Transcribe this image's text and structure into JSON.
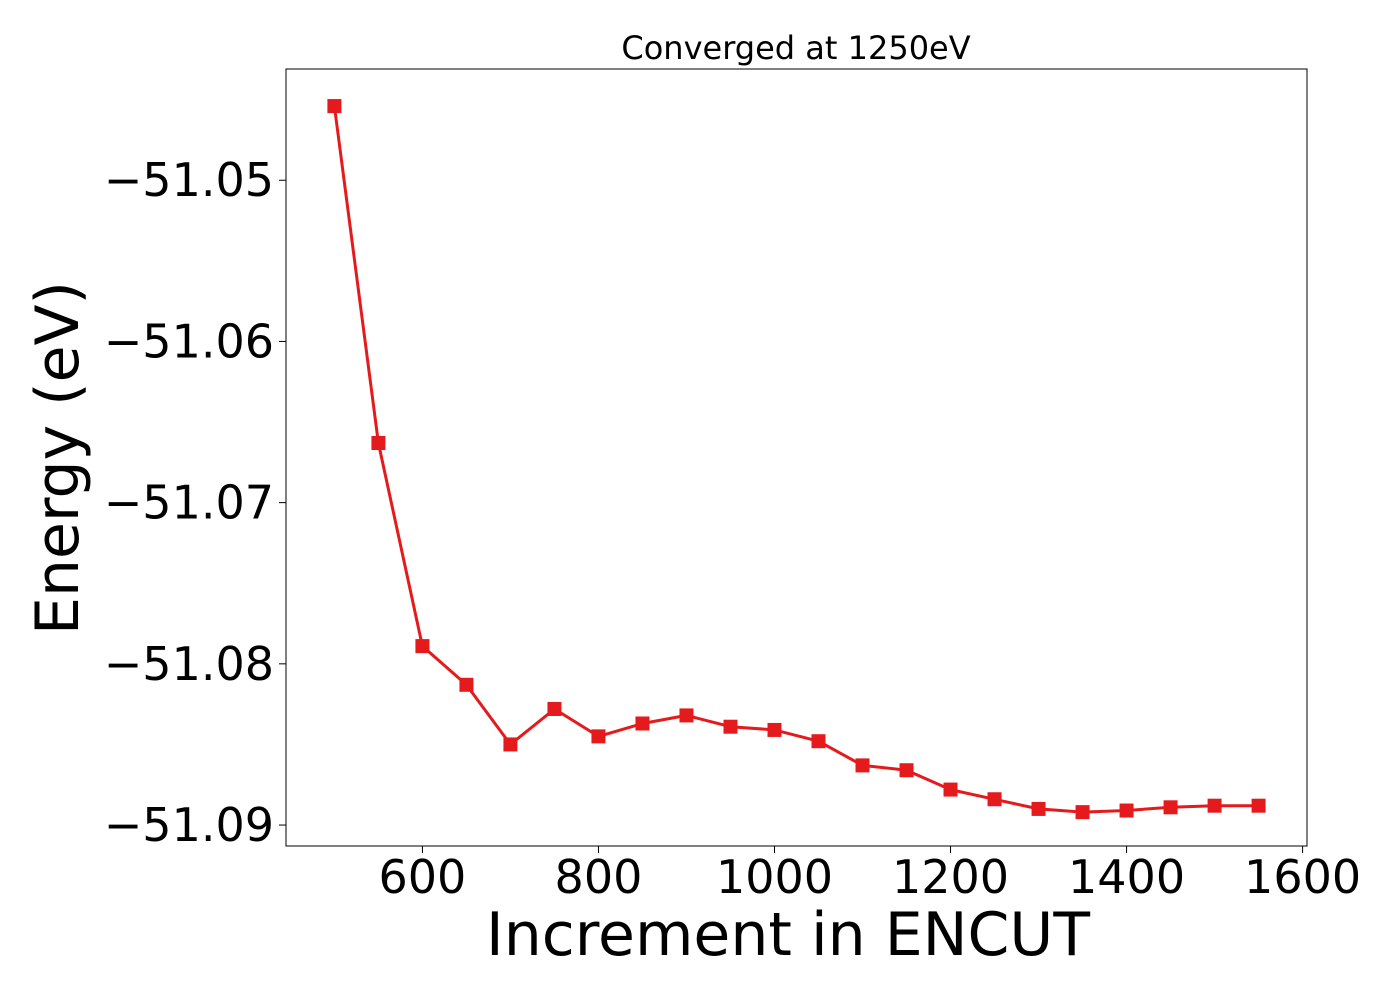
{
  "chart_data": {
    "type": "line",
    "title": "Converged at 1250eV",
    "xlabel": "Increment in ENCUT",
    "ylabel": "Energy (eV)",
    "xlim": [
      445,
      1605
    ],
    "ylim": [
      -51.0913,
      -51.0431
    ],
    "xticks": [
      600,
      800,
      1000,
      1200,
      1400,
      1600
    ],
    "xtick_labels": [
      "600",
      "800",
      "1000",
      "1200",
      "1400",
      "1600"
    ],
    "yticks": [
      -51.05,
      -51.06,
      -51.07,
      -51.08,
      -51.09
    ],
    "ytick_labels": [
      "−51.05",
      "−51.06",
      "−51.07",
      "−51.08",
      "−51.09"
    ],
    "grid": false,
    "series": [
      {
        "color": "#e41a1c",
        "marker": "square",
        "x": [
          500,
          550,
          600,
          650,
          700,
          750,
          800,
          850,
          900,
          950,
          1000,
          1050,
          1100,
          1150,
          1200,
          1250,
          1300,
          1350,
          1400,
          1450,
          1500,
          1550
        ],
        "y": [
          -51.0454,
          -51.0663,
          -51.0789,
          -51.0813,
          -51.085,
          -51.0828,
          -51.0845,
          -51.0837,
          -51.0832,
          -51.0839,
          -51.0841,
          -51.0848,
          -51.0863,
          -51.0866,
          -51.0878,
          -51.0884,
          -51.089,
          -51.0892,
          -51.0891,
          -51.0889,
          -51.0888,
          -51.0888
        ]
      }
    ]
  }
}
